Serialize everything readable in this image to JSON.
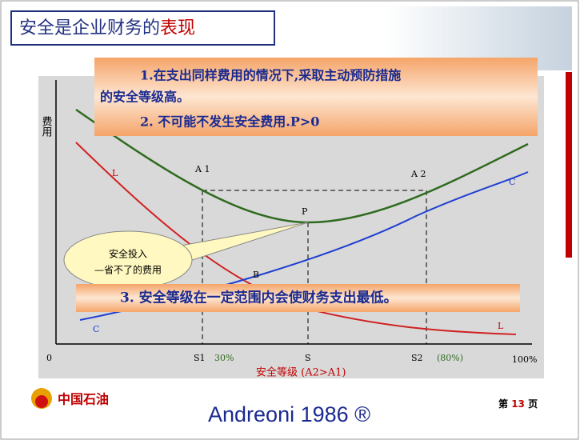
{
  "title": {
    "main": "安全是企业财务的",
    "highlight": "表现"
  },
  "notes": {
    "line1": "1.在支出同样费用的情况下,采取主动预防措施",
    "line2": "的安全等级高。",
    "line3": "2.  不可能不发生安全费用.P>0",
    "line4": "3.  安全等级在一定范围内会使财务支出最低。"
  },
  "axis": {
    "y_label": "费用",
    "origin": "0",
    "s1": "S1",
    "s1_pct": "30%",
    "s": "S",
    "s2": "S2",
    "s2_pct": "(80%)",
    "end": "100%",
    "x_label": "安全等级  (A2>A1)"
  },
  "curve_labels": {
    "a1": "A 1",
    "a2": "A 2",
    "p": "P",
    "l_top": "L",
    "l_bottom": "L",
    "c_top": "C",
    "c_bottom": "C",
    "b": "B"
  },
  "callout": {
    "line1": "安全投入",
    "line2": "—省不了的费用"
  },
  "footer": {
    "company": "中国石油",
    "page_pre": "第",
    "page_num": "13",
    "page_post": "页",
    "citation": "Andreoni 1986 ®"
  }
}
